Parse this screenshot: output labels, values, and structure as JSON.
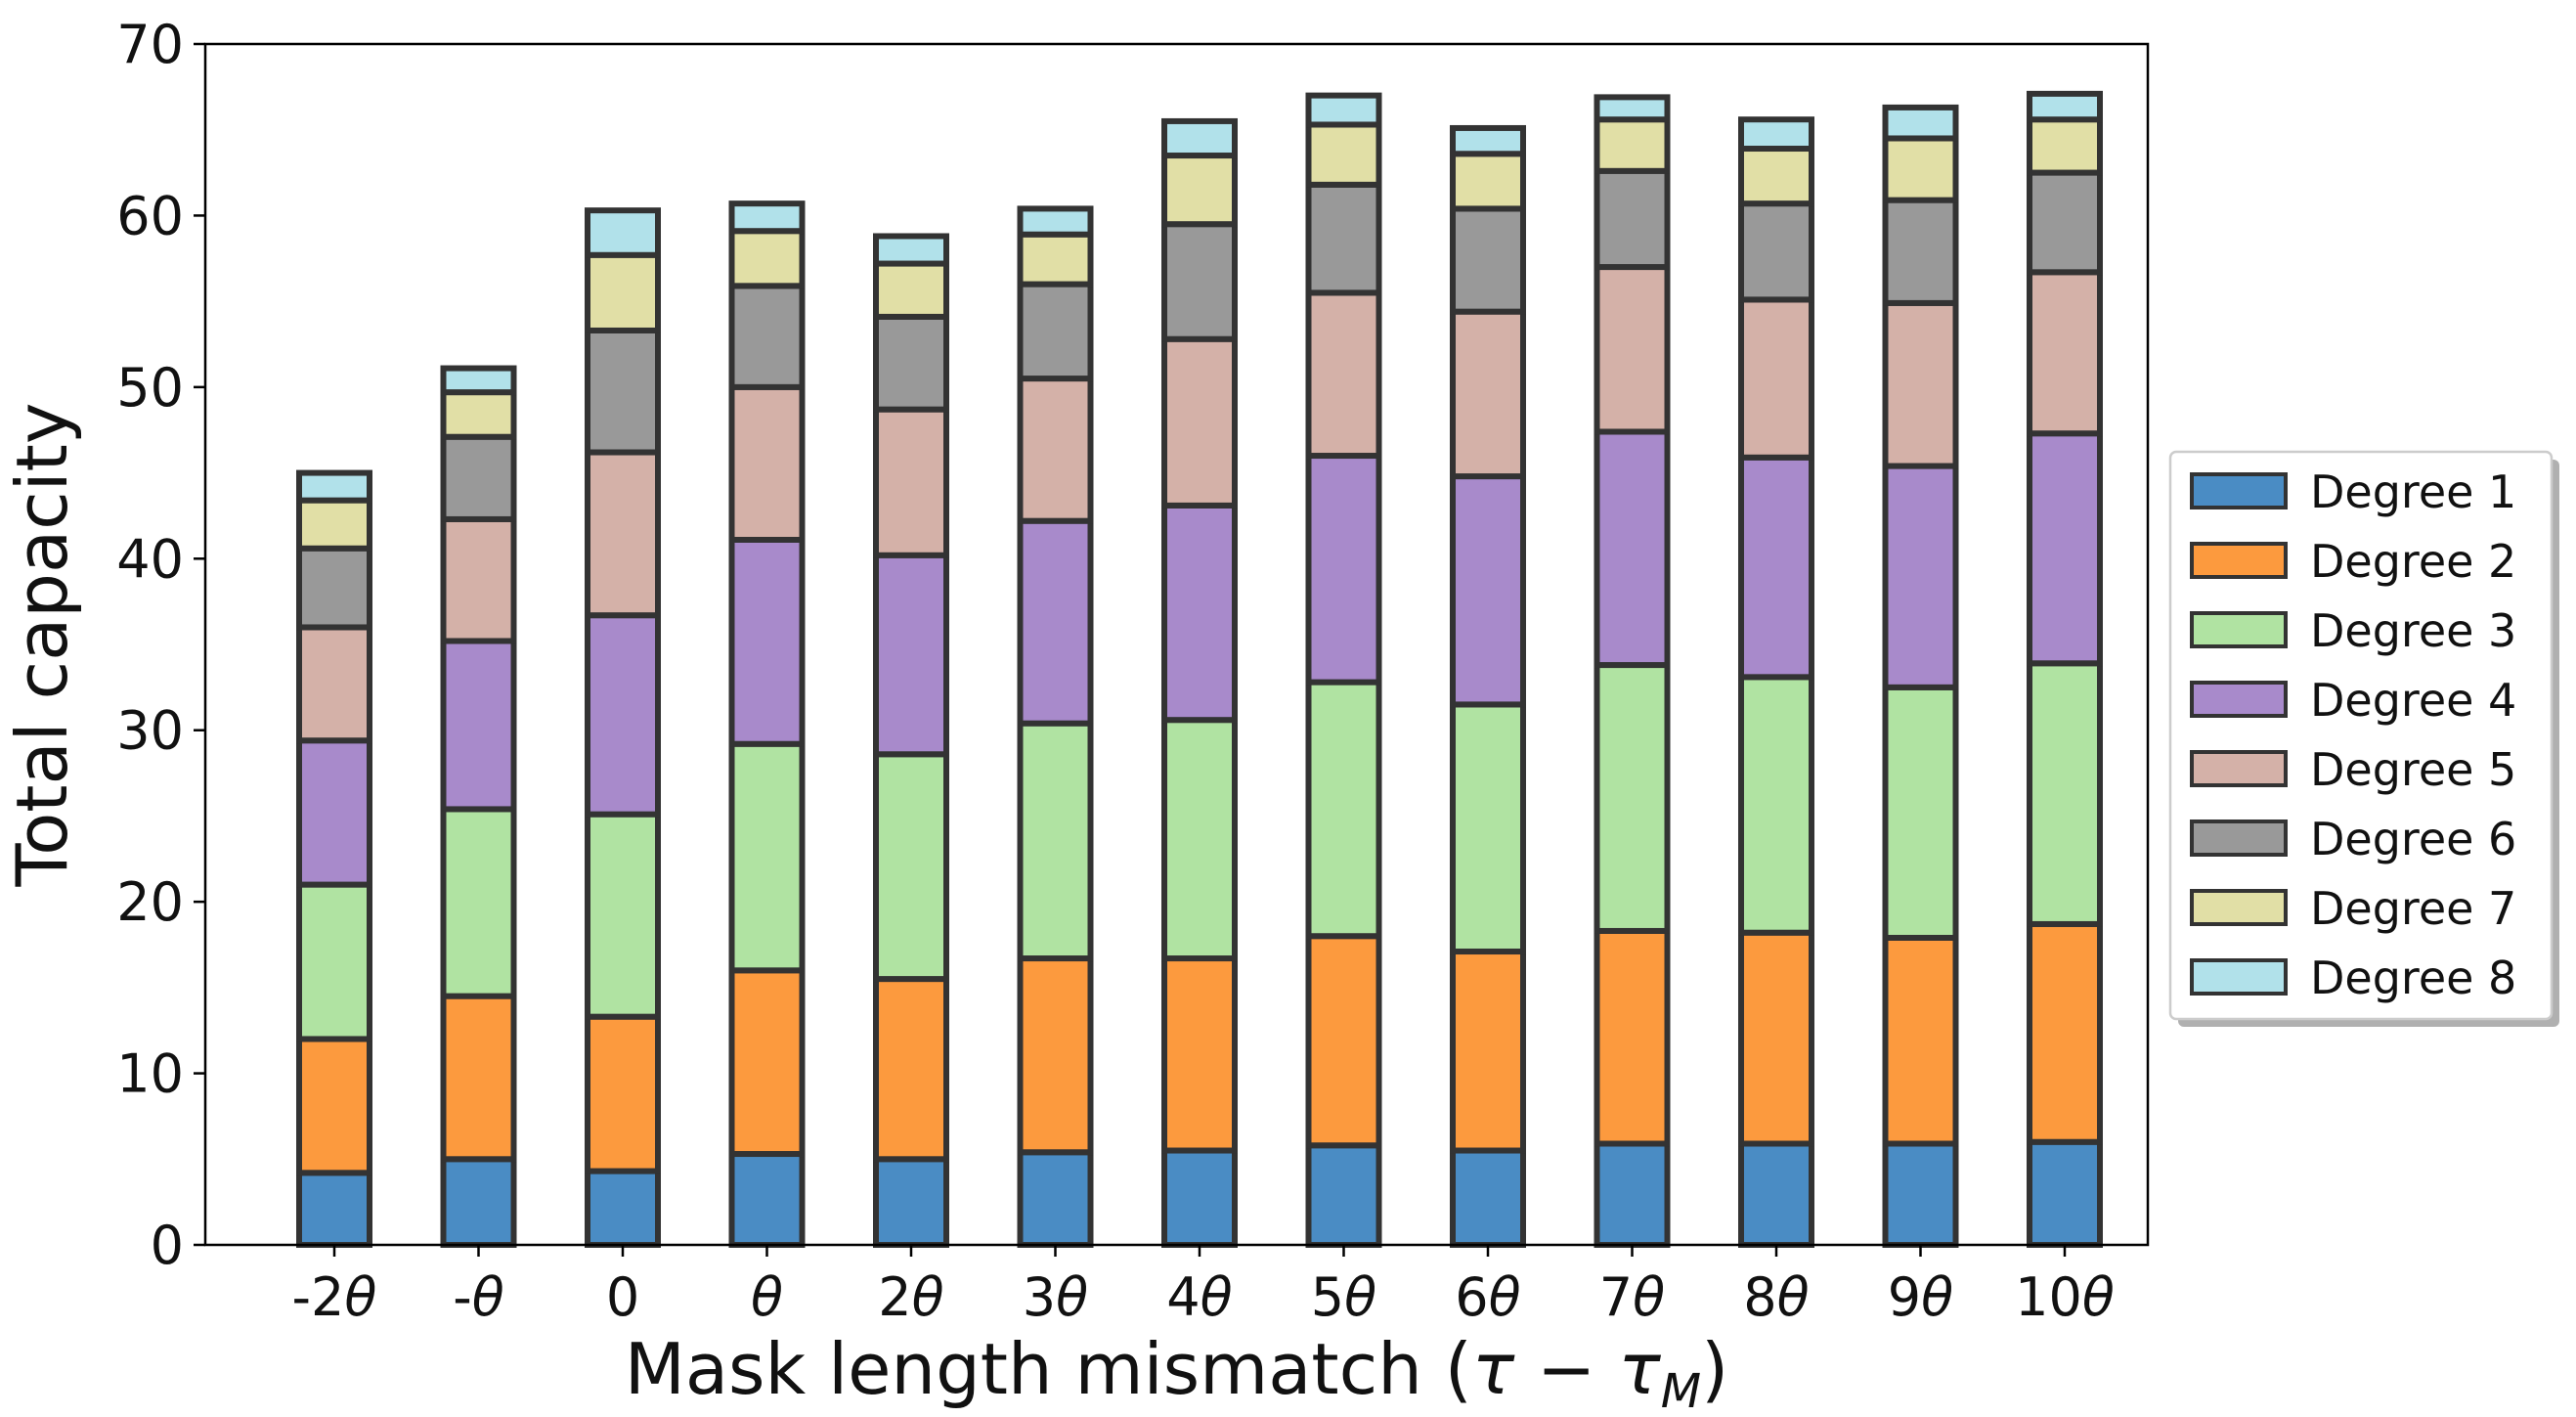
{
  "chart_data": {
    "type": "bar",
    "stacked": true,
    "xlabel": "Mask length mismatch (τ − τ_M)",
    "xlabel_parts": {
      "main": "Mask length mismatch (",
      "tau": "τ",
      "minus": " − ",
      "tau2": "τ",
      "sub": "M",
      "close": ")"
    },
    "ylabel": "Total capacity",
    "ylim": [
      0,
      70
    ],
    "yticks": [
      0,
      10,
      20,
      30,
      40,
      50,
      60,
      70
    ],
    "categories": [
      "-2θ",
      "-θ",
      "0",
      "θ",
      "2θ",
      "3θ",
      "4θ",
      "5θ",
      "6θ",
      "7θ",
      "8θ",
      "9θ",
      "10θ"
    ],
    "legend_position": "center-right-outside",
    "grid": false,
    "series": [
      {
        "name": "Degree 1",
        "color": "#4a8cc4",
        "values": [
          4.2,
          5.0,
          4.3,
          5.3,
          5.0,
          5.4,
          5.5,
          5.8,
          5.5,
          5.9,
          5.9,
          5.9,
          6.0
        ]
      },
      {
        "name": "Degree 2",
        "color": "#fc9a3e",
        "values": [
          7.8,
          9.5,
          9.0,
          10.7,
          10.5,
          11.3,
          11.2,
          12.2,
          11.6,
          12.4,
          12.3,
          12.0,
          12.7
        ]
      },
      {
        "name": "Degree 3",
        "color": "#b0e3a2",
        "values": [
          9.0,
          10.9,
          11.8,
          13.2,
          13.1,
          13.7,
          13.9,
          14.8,
          14.4,
          15.5,
          14.9,
          14.6,
          15.2
        ]
      },
      {
        "name": "Degree 4",
        "color": "#a88acb",
        "values": [
          8.4,
          9.8,
          11.6,
          11.9,
          11.6,
          11.8,
          12.5,
          13.2,
          13.3,
          13.6,
          12.8,
          12.9,
          13.4
        ]
      },
      {
        "name": "Degree 5",
        "color": "#d4b1a8",
        "values": [
          6.6,
          7.1,
          9.5,
          8.9,
          8.5,
          8.3,
          9.7,
          9.5,
          9.6,
          9.6,
          9.2,
          9.5,
          9.4
        ]
      },
      {
        "name": "Degree 6",
        "color": "#999999",
        "values": [
          4.6,
          4.8,
          7.1,
          5.9,
          5.4,
          5.5,
          6.7,
          6.3,
          6.0,
          5.6,
          5.6,
          6.0,
          5.8
        ]
      },
      {
        "name": "Degree 7",
        "color": "#e1dfa6",
        "values": [
          2.8,
          2.6,
          4.4,
          3.2,
          3.1,
          2.9,
          4.0,
          3.5,
          3.2,
          3.0,
          3.2,
          3.6,
          3.1
        ]
      },
      {
        "name": "Degree 8",
        "color": "#b1e1ea",
        "values": [
          1.6,
          1.4,
          2.6,
          1.6,
          1.6,
          1.5,
          2.0,
          1.7,
          1.5,
          1.3,
          1.7,
          1.8,
          1.5
        ]
      }
    ]
  }
}
